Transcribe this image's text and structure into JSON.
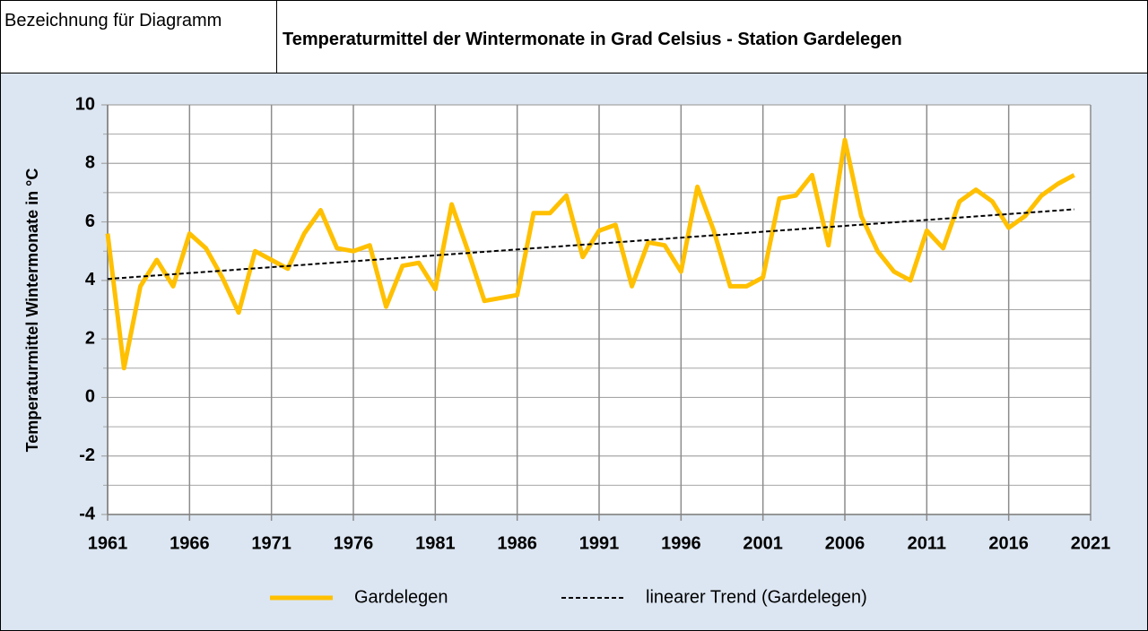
{
  "header": {
    "label": "Bezeichnung für Diagramm"
  },
  "chart_data": {
    "type": "line",
    "title": "Temperaturmittel der Wintermonate in Grad Celsius - Station Gardelegen",
    "ylabel": "Temperaturmittel Wintermonate in °C",
    "series": [
      {
        "name": "Gardelegen",
        "color": "#ffc000",
        "x": [
          1961,
          1962,
          1963,
          1964,
          1965,
          1966,
          1967,
          1968,
          1969,
          1970,
          1971,
          1972,
          1973,
          1974,
          1975,
          1976,
          1977,
          1978,
          1979,
          1980,
          1981,
          1982,
          1983,
          1984,
          1985,
          1986,
          1987,
          1988,
          1989,
          1990,
          1991,
          1992,
          1993,
          1994,
          1995,
          1996,
          1997,
          1998,
          1999,
          2000,
          2001,
          2002,
          2003,
          2004,
          2005,
          2006,
          2007,
          2008,
          2009,
          2010,
          2011,
          2012,
          2013,
          2014,
          2015,
          2016,
          2017,
          2018,
          2019,
          2020
        ],
        "values": [
          5.6,
          1.0,
          3.8,
          4.7,
          3.8,
          5.6,
          5.1,
          4.1,
          2.9,
          5.0,
          4.7,
          4.4,
          5.6,
          6.4,
          5.1,
          5.0,
          5.2,
          3.1,
          4.5,
          4.6,
          3.7,
          6.6,
          5.0,
          3.3,
          3.4,
          3.5,
          6.3,
          6.3,
          6.9,
          4.8,
          5.7,
          5.9,
          3.8,
          5.3,
          5.2,
          4.3,
          7.2,
          5.7,
          3.8,
          3.8,
          4.1,
          6.8,
          6.9,
          7.6,
          5.2,
          8.8,
          6.2,
          5.0,
          4.3,
          4.0,
          5.7,
          5.1,
          6.7,
          7.1,
          6.7,
          5.8,
          6.2,
          6.9,
          7.3,
          7.6
        ]
      },
      {
        "name": "linearer Trend (Gardelegen)",
        "color": "#000000",
        "dashed": true,
        "x": [
          1961,
          2020
        ],
        "values": [
          4.05,
          6.43
        ]
      }
    ],
    "xlim": [
      1961,
      2021
    ],
    "xticks": [
      1961,
      1966,
      1971,
      1976,
      1981,
      1986,
      1991,
      1996,
      2001,
      2006,
      2011,
      2016,
      2021
    ],
    "ylim": [
      -4,
      10
    ],
    "yticks": [
      -4,
      -2,
      0,
      2,
      4,
      6,
      8,
      10
    ],
    "grid": true,
    "legend": "bottom"
  }
}
